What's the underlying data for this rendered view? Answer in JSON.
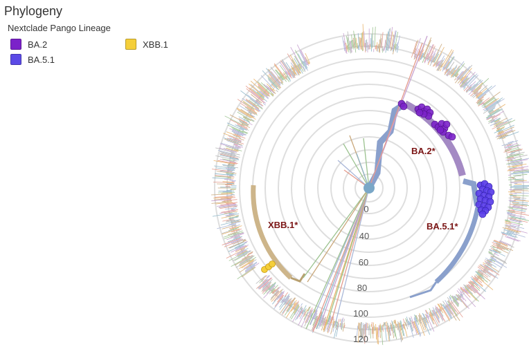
{
  "panel": {
    "title": "Phylogeny"
  },
  "legend": {
    "title": "Nextclade Pango Lineage",
    "items": [
      {
        "label": "BA.2",
        "color": "#7b22c9"
      },
      {
        "label": "BA.5.1",
        "color": "#5b4ae6"
      },
      {
        "label": "XBB.1",
        "color": "#f5cf3a"
      }
    ]
  },
  "tree": {
    "axis_ticks": [
      "0",
      "40",
      "60",
      "80",
      "100",
      "120"
    ],
    "clade_labels": [
      "BA.2*",
      "BA.5.1*",
      "XBB.1*"
    ],
    "clade_label_color": "#7b1515"
  }
}
